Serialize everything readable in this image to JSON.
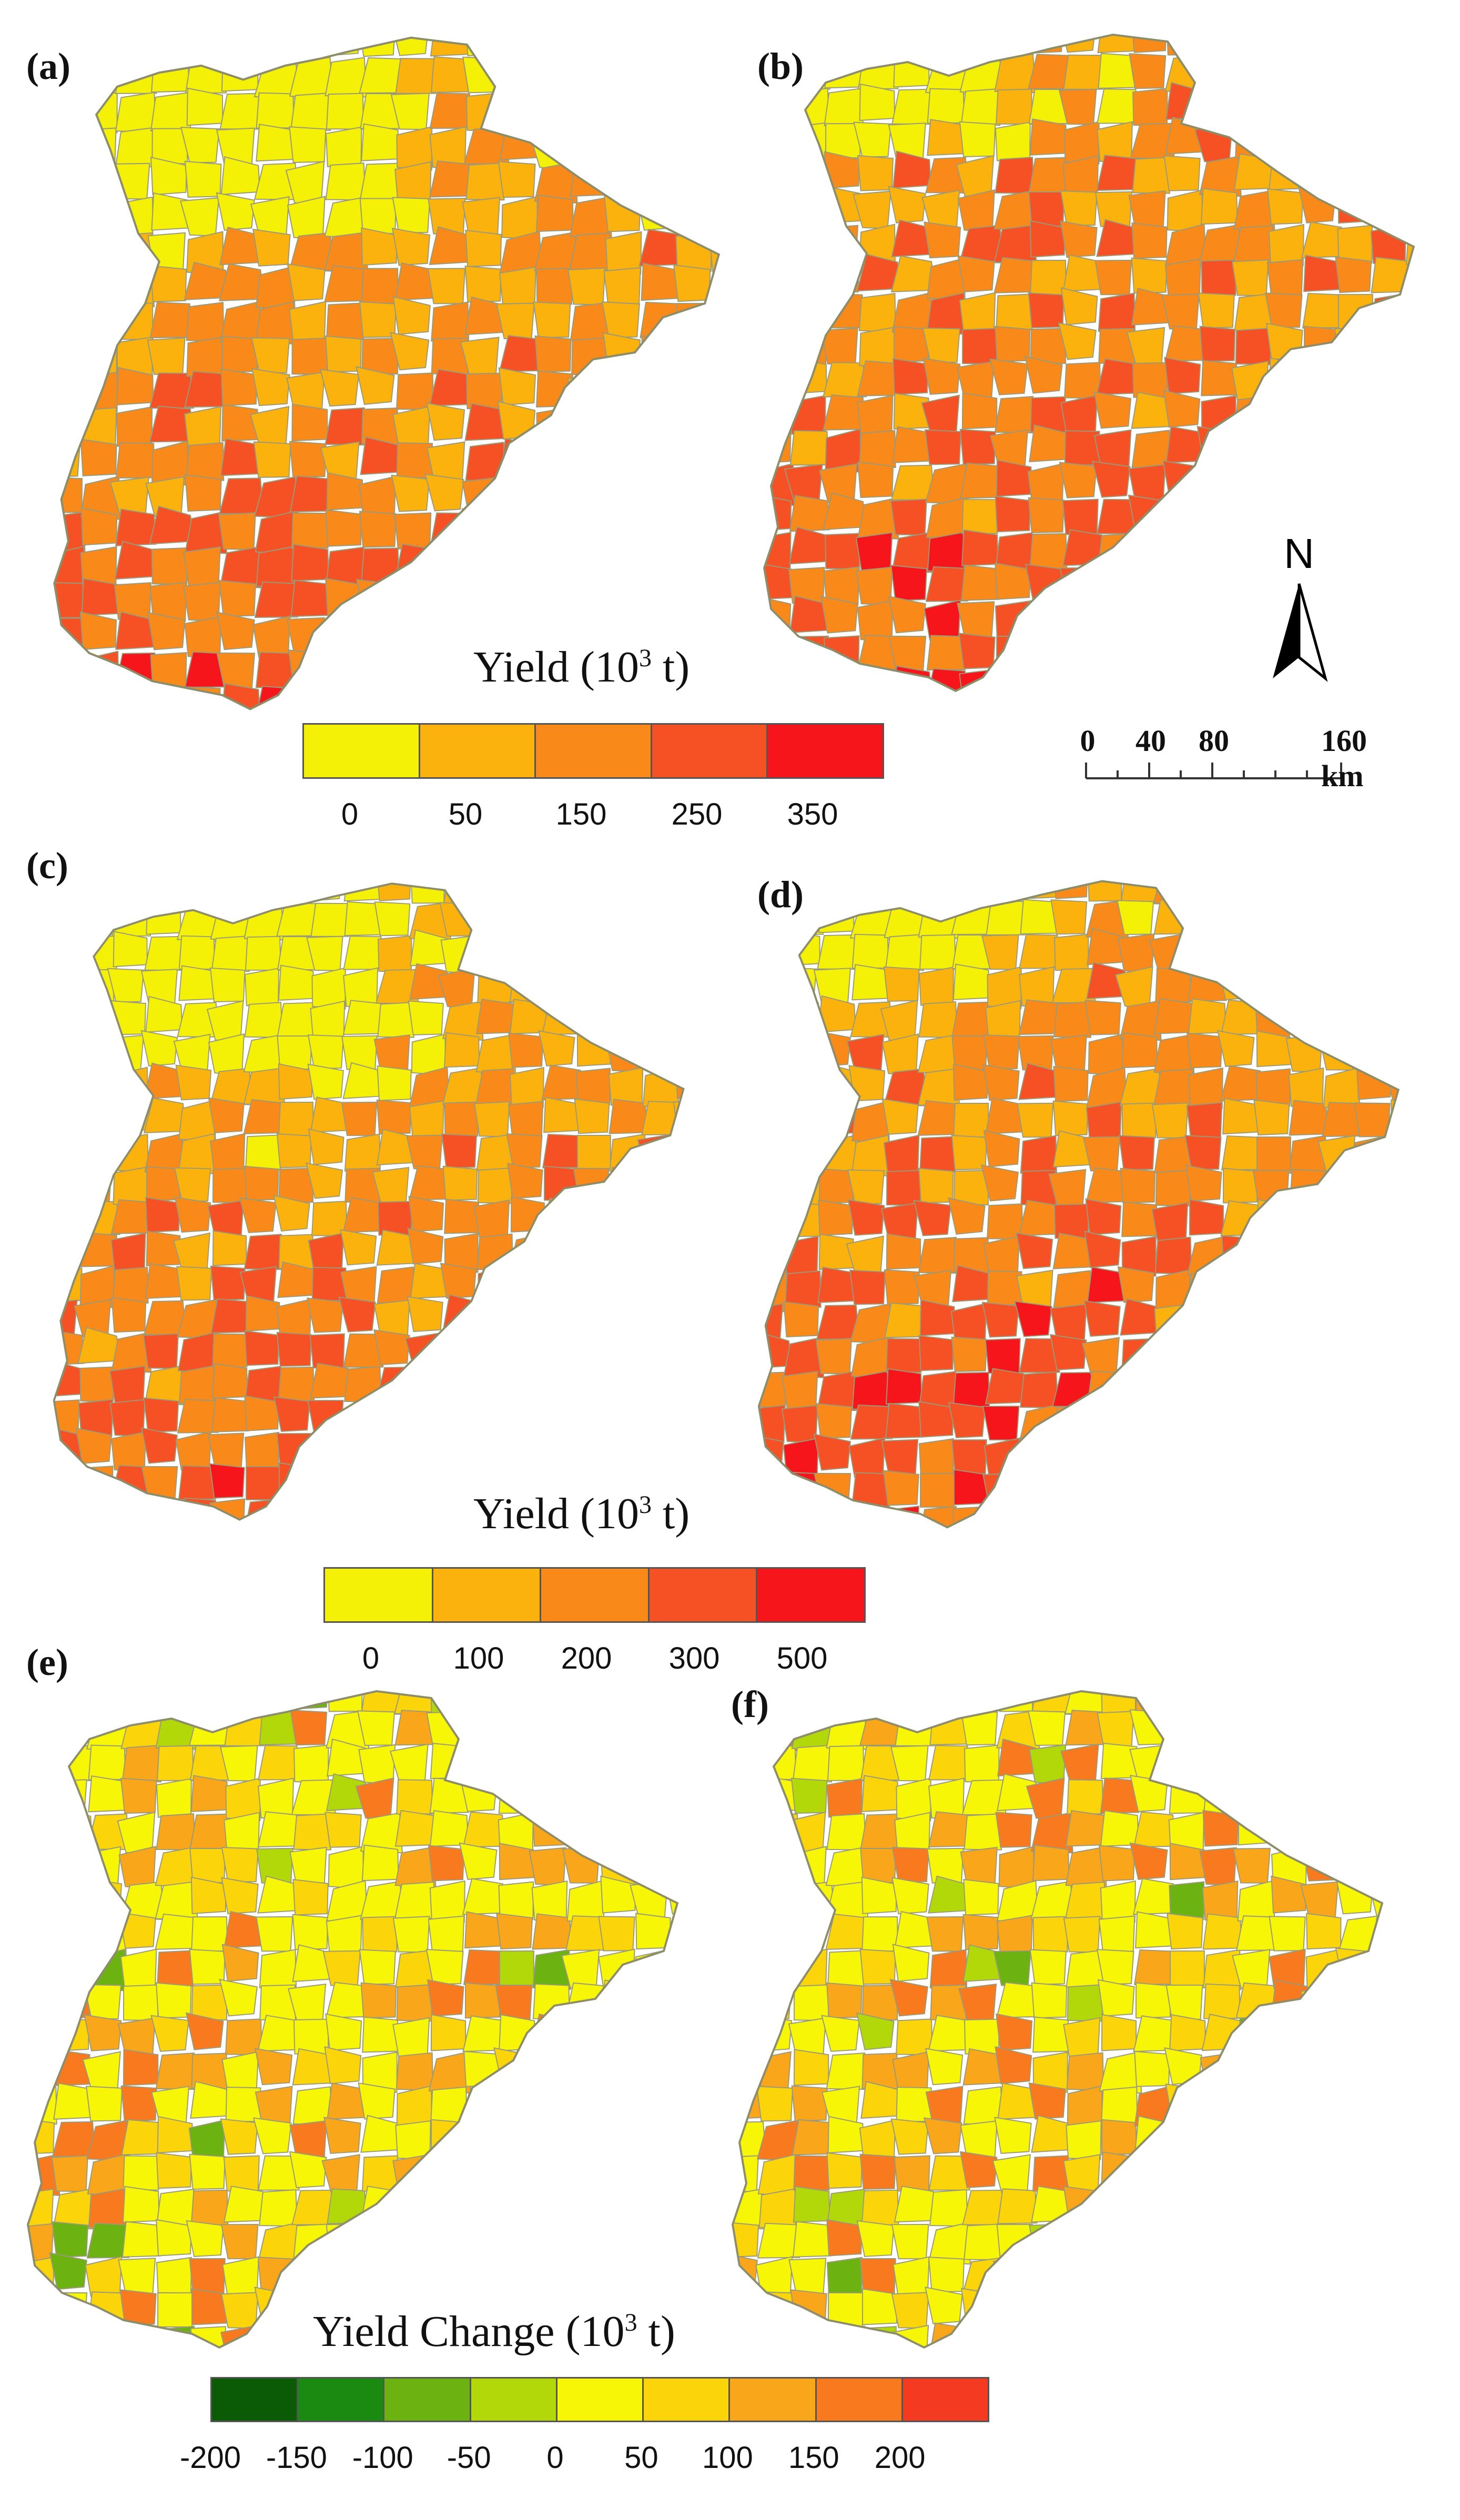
{
  "panels": [
    {
      "label": "(a)",
      "legend_group": "yield1",
      "level": "low"
    },
    {
      "label": "(b)",
      "legend_group": "yield1",
      "level": "high"
    },
    {
      "label": "(c)",
      "legend_group": "yield2",
      "level": "low"
    },
    {
      "label": "(d)",
      "legend_group": "yield2",
      "level": "high"
    },
    {
      "label": "(e)",
      "legend_group": "change",
      "level": "mixed"
    },
    {
      "label": "(f)",
      "legend_group": "change",
      "level": "mixed2"
    }
  ],
  "legend_yield1": {
    "title": "Yield (10",
    "title_sup": "3",
    "title_end": " t)",
    "ticks": [
      "0",
      "50",
      "150",
      "250",
      "350"
    ],
    "colors": [
      "#f4f006",
      "#fbb20d",
      "#f98a1a",
      "#f65124",
      "#f6151b"
    ]
  },
  "legend_yield2": {
    "title": "Yield (10",
    "title_sup": "3",
    "title_end": " t)",
    "ticks": [
      "0",
      "100",
      "200",
      "300",
      "500"
    ],
    "colors": [
      "#f4f006",
      "#fbb20d",
      "#f98a1a",
      "#f65124",
      "#f6151b"
    ]
  },
  "legend_change": {
    "title": "Yield Change (10",
    "title_sup": "3",
    "title_end": " t)",
    "ticks": [
      "-200",
      "-150",
      "-100",
      "-50",
      "0",
      "50",
      "100",
      "150",
      "200"
    ],
    "colors": [
      "#0b5a06",
      "#1b8a10",
      "#6cb312",
      "#b3d80a",
      "#f6f606",
      "#fbd40a",
      "#faa61a",
      "#f97a1e",
      "#f43a20"
    ]
  },
  "north_arrow": {
    "letter": "N"
  },
  "scale_bar": {
    "labels": [
      "0",
      "40",
      "80",
      "160 km"
    ]
  }
}
